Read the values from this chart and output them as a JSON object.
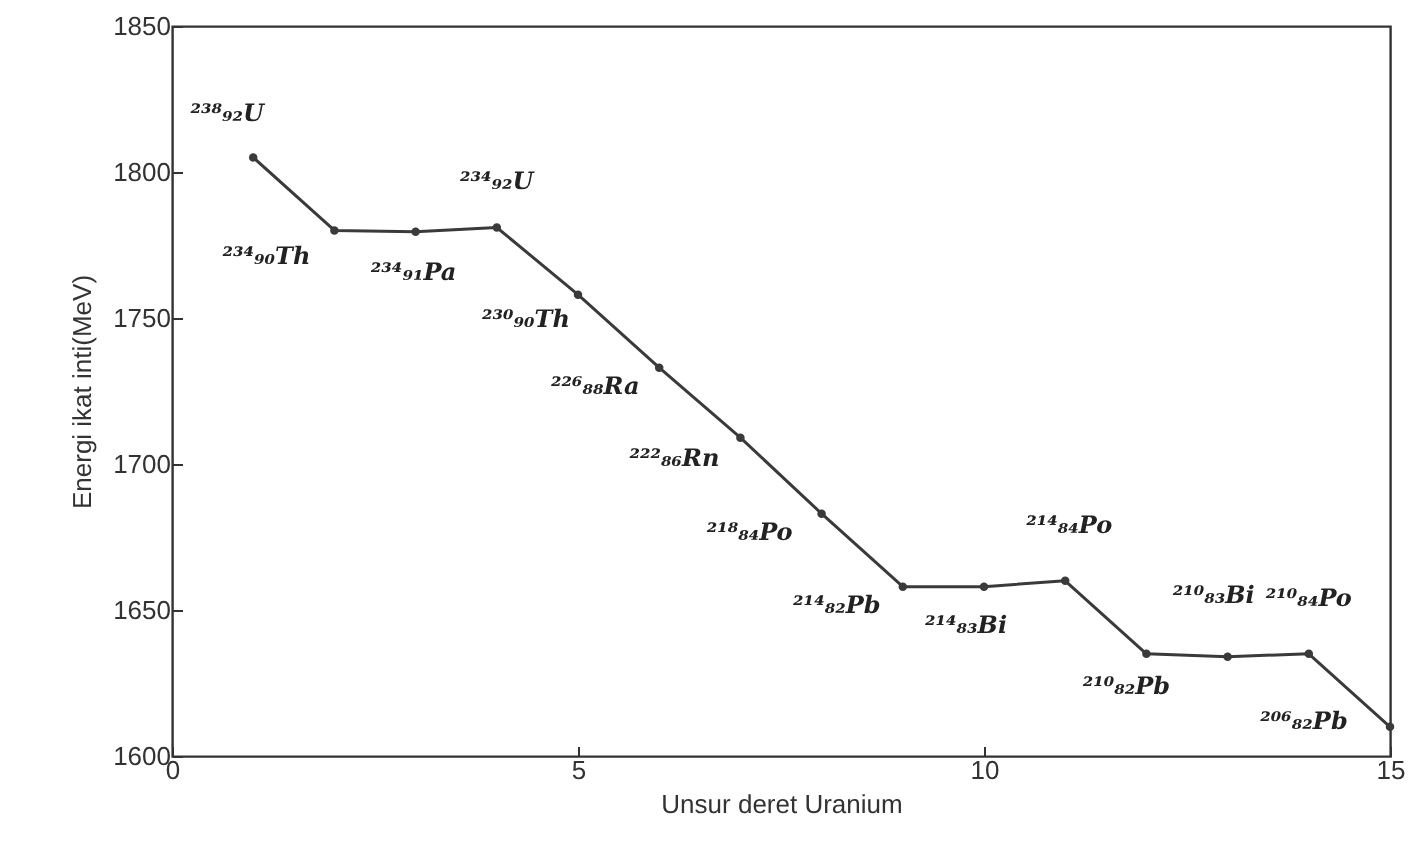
{
  "chart_data": {
    "type": "line",
    "xlabel": "Unsur deret Uranium",
    "ylabel": "Energi ikat inti(MeV)",
    "x": [
      1,
      2,
      3,
      4,
      5,
      6,
      7,
      8,
      9,
      10,
      11,
      12,
      13,
      14,
      15
    ],
    "series": [
      {
        "color": "#3a3a3a",
        "values": [
          1805,
          1780,
          1779.5,
          1781,
          1758,
          1733,
          1709,
          1683,
          1658,
          1658,
          1660,
          1635,
          1634,
          1635,
          1610
        ]
      }
    ],
    "xlim": [
      0,
      15
    ],
    "xticks": [
      0,
      5,
      10,
      15
    ],
    "ylim": [
      1600,
      1850
    ],
    "yticks": [
      1600,
      1650,
      1700,
      1750,
      1800,
      1850
    ],
    "grid": false,
    "marker": "circle",
    "line_style": "solid",
    "annotations": [
      {
        "text": "²³⁸₉₂U",
        "x": 1,
        "y": 1805
      },
      {
        "text": "²³⁴₉₀Th",
        "x": 2,
        "y": 1780
      },
      {
        "text": "²³⁴₉₁Pa",
        "x": 3,
        "y": 1779.5
      },
      {
        "text": "²³⁴₉₂U",
        "x": 4,
        "y": 1781
      },
      {
        "text": "²³⁰₉₀Th",
        "x": 5,
        "y": 1758
      },
      {
        "text": "²²⁶₈₈Ra",
        "x": 6,
        "y": 1733
      },
      {
        "text": "²²²₈₆Rn",
        "x": 7,
        "y": 1709
      },
      {
        "text": "²¹⁸₈₄Po",
        "x": 8,
        "y": 1683
      },
      {
        "text": "²¹⁴₈₂Pb",
        "x": 9,
        "y": 1658
      },
      {
        "text": "²¹⁴₈₃Bi",
        "x": 10,
        "y": 1658
      },
      {
        "text": "²¹⁴₈₄Po",
        "x": 11,
        "y": 1660
      },
      {
        "text": "²¹⁰₈₂Pb",
        "x": 12,
        "y": 1635
      },
      {
        "text": "²¹⁰₈₃Bi",
        "x": 13,
        "y": 1634
      },
      {
        "text": "²¹⁰₈₄Po",
        "x": 14,
        "y": 1635
      },
      {
        "text": "²⁰⁶₈₂Pb",
        "x": 15,
        "y": 1610
      }
    ]
  }
}
